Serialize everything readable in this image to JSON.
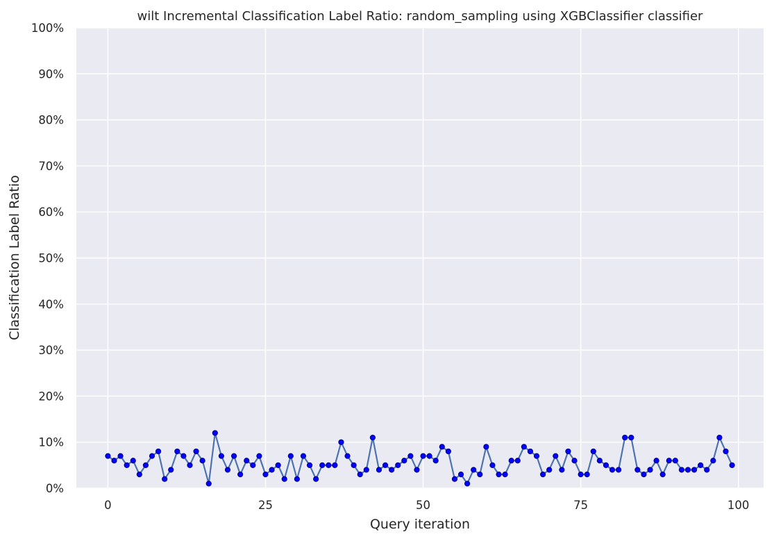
{
  "chart_data": {
    "type": "line",
    "title": "wilt Incremental Classification Label Ratio: random_sampling using XGBClassifier classifier",
    "xlabel": "Query iteration",
    "ylabel": "Classification Label Ratio",
    "xlim": [
      -5,
      104
    ],
    "ylim": [
      0,
      100
    ],
    "xticks": [
      0,
      25,
      50,
      75,
      100
    ],
    "xtick_labels": [
      "0",
      "25",
      "50",
      "75",
      "100"
    ],
    "yticks": [
      0,
      10,
      20,
      30,
      40,
      50,
      60,
      70,
      80,
      90,
      100
    ],
    "ytick_labels": [
      "0%",
      "10%",
      "20%",
      "30%",
      "40%",
      "50%",
      "60%",
      "70%",
      "80%",
      "90%",
      "100%"
    ],
    "grid": true,
    "legend": "none",
    "colors": {
      "background": "#eaeaf2",
      "grid": "#ffffff",
      "line": "#4c72b0",
      "marker": "#0000ff",
      "marker_edge": "#00008b"
    },
    "series": [
      {
        "x": [
          0,
          1,
          2,
          3,
          4,
          5,
          6,
          7,
          8,
          9,
          10,
          11,
          12,
          13,
          14,
          15,
          16,
          17,
          18,
          19,
          20,
          21,
          22,
          23,
          24,
          25,
          26,
          27,
          28,
          29,
          30,
          31,
          32,
          33,
          34,
          35,
          36,
          37,
          38,
          39,
          40,
          41,
          42,
          43,
          44,
          45,
          46,
          47,
          48,
          49,
          50,
          51,
          52,
          53,
          54,
          55,
          56,
          57,
          58,
          59,
          60,
          61,
          62,
          63,
          64,
          65,
          66,
          67,
          68,
          69,
          70,
          71,
          72,
          73,
          74,
          75,
          76,
          77,
          78,
          79,
          80,
          81,
          82,
          83,
          84,
          85,
          86,
          87,
          88,
          89,
          90,
          91,
          92,
          93,
          94,
          95,
          96,
          97,
          98,
          99
        ],
        "y": [
          7,
          6,
          7,
          5,
          6,
          3,
          5,
          7,
          8,
          2,
          4,
          8,
          7,
          5,
          8,
          6,
          1,
          12,
          7,
          4,
          7,
          3,
          6,
          5,
          7,
          3,
          4,
          5,
          2,
          7,
          2,
          7,
          5,
          2,
          5,
          5,
          5,
          10,
          7,
          5,
          3,
          4,
          11,
          4,
          5,
          4,
          5,
          6,
          7,
          4,
          7,
          7,
          6,
          9,
          8,
          2,
          3,
          1,
          4,
          3,
          9,
          5,
          3,
          3,
          6,
          6,
          9,
          8,
          7,
          3,
          4,
          7,
          4,
          8,
          6,
          3,
          3,
          8,
          6,
          5,
          4,
          4,
          11,
          11,
          4,
          3,
          4,
          6,
          3,
          6,
          6,
          4,
          4,
          4,
          5,
          4,
          6,
          11,
          8,
          5
        ]
      }
    ]
  }
}
